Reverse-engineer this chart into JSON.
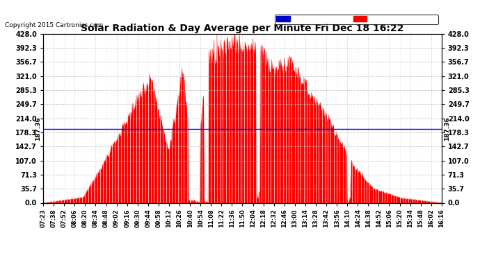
{
  "title": "Solar Radiation & Day Average per Minute Fri Dec 18 16:22",
  "copyright": "Copyright 2015 Cartronics.com",
  "median_value": 187.36,
  "median_label": "187.36",
  "yticks": [
    0.0,
    35.7,
    71.3,
    107.0,
    142.7,
    178.3,
    214.0,
    249.7,
    285.3,
    321.0,
    356.7,
    392.3,
    428.0
  ],
  "ylim": [
    0.0,
    428.0
  ],
  "bar_color": "#ff0000",
  "background_color": "#ffffff",
  "grid_color": "#aaaaaa",
  "median_line_color": "#0000ff",
  "legend_median_bg": "#0000cc",
  "legend_radiation_bg": "#ff0000",
  "legend_text_color": "#ffffff",
  "xtick_labels": [
    "07:23",
    "07:38",
    "07:52",
    "08:06",
    "08:20",
    "08:34",
    "08:48",
    "09:02",
    "09:16",
    "09:30",
    "09:44",
    "09:58",
    "10:12",
    "10:26",
    "10:40",
    "10:54",
    "11:08",
    "11:22",
    "11:36",
    "11:50",
    "12:04",
    "12:18",
    "12:32",
    "12:46",
    "13:00",
    "13:14",
    "13:28",
    "13:42",
    "13:56",
    "14:10",
    "14:24",
    "14:38",
    "14:52",
    "15:06",
    "15:20",
    "15:34",
    "15:48",
    "16:02",
    "16:16"
  ],
  "n_xtick_labels": 39,
  "figsize": [
    6.9,
    3.75
  ],
  "dpi": 100
}
